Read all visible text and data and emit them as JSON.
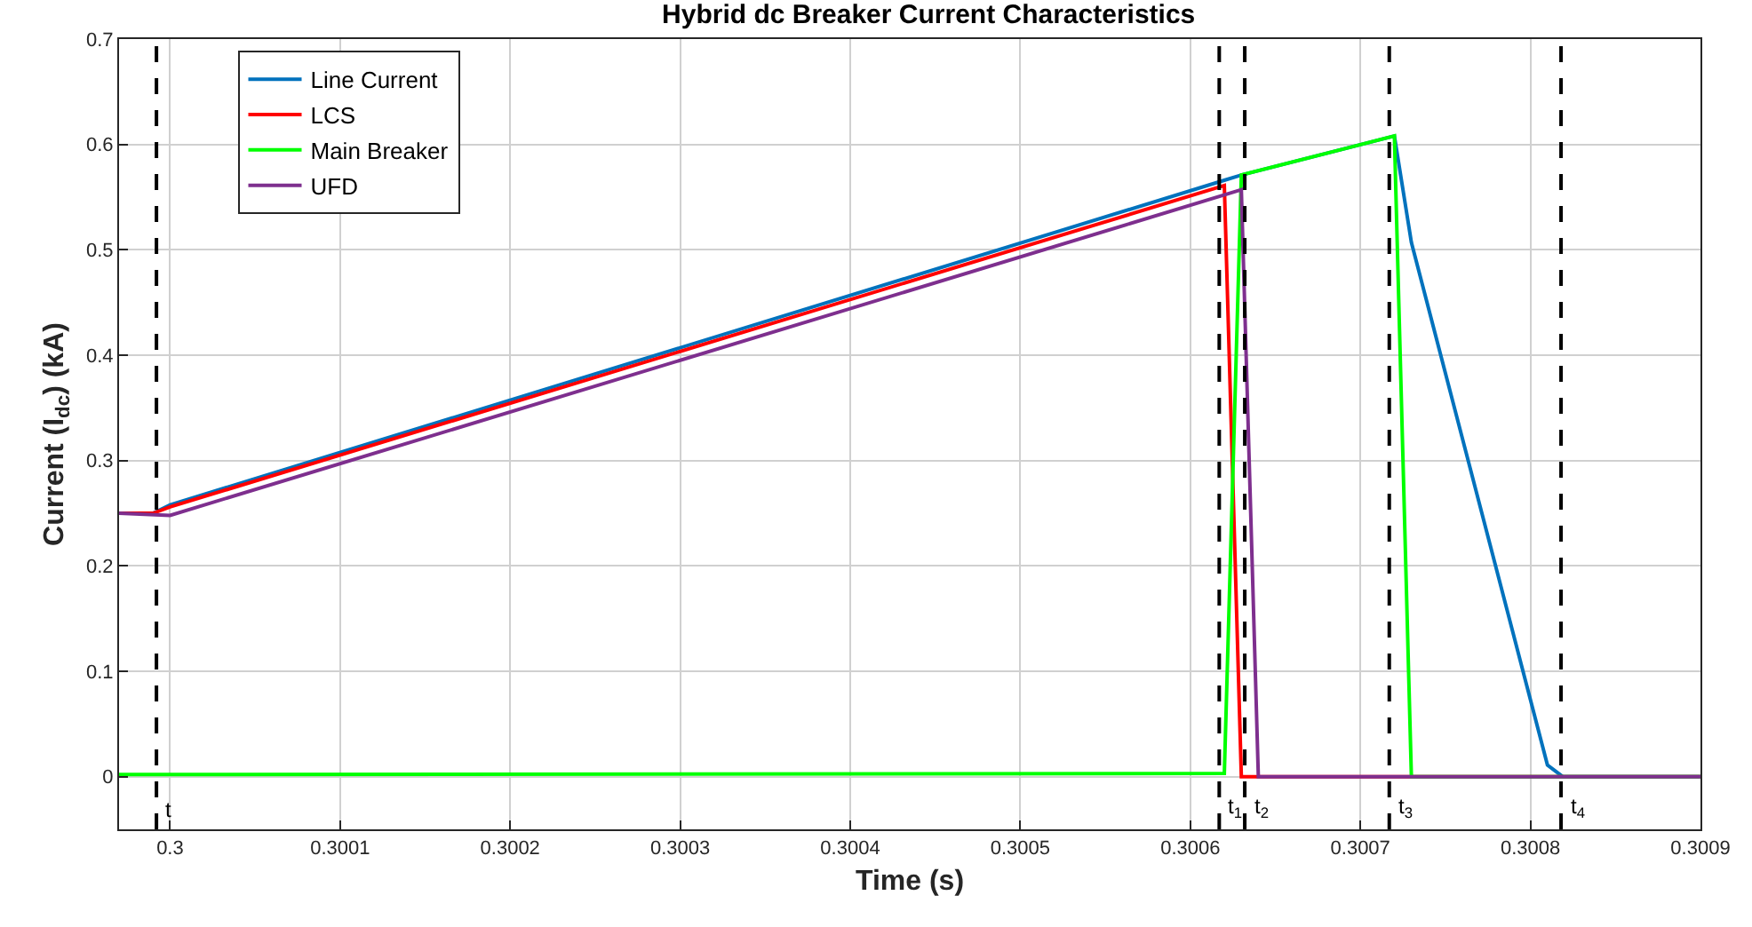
{
  "chart_data": {
    "type": "line",
    "title": "Hybrid dc Breaker Current Characteristics",
    "xlabel": "Time (s)",
    "ylabel": "Current (I$_{dc}$) (kA)",
    "series": [
      {
        "name": "Line Current",
        "color": "#0072bd",
        "x": [
          0.29997,
          0.29999,
          0.3,
          0.30062,
          0.30063,
          0.30072,
          0.30073,
          0.30081,
          0.300819,
          0.3009
        ],
        "values": [
          0.25,
          0.25,
          0.258,
          0.566,
          0.571,
          0.608,
          0.507,
          0.011,
          0,
          0
        ]
      },
      {
        "name": "LCS",
        "color": "#ff0000",
        "x": [
          0.29997,
          0.29999,
          0.3,
          0.30062,
          0.30063,
          0.3009
        ],
        "values": [
          0.25,
          0.25,
          0.256,
          0.561,
          0,
          0
        ]
      },
      {
        "name": "Main Breaker",
        "color": "#00ff00",
        "x": [
          0.29997,
          0.30062,
          0.30063,
          0.30072,
          0.30073,
          0.3009
        ],
        "values": [
          0.002,
          0.003,
          0.571,
          0.608,
          0,
          0
        ]
      },
      {
        "name": "UFD",
        "color": "#7e2f8e",
        "x": [
          0.29997,
          0.3,
          0.30063,
          0.30064,
          0.3009
        ],
        "values": [
          0.25,
          0.248,
          0.557,
          0,
          0
        ]
      }
    ],
    "xlim": [
      0.29997,
      0.3009
    ],
    "xticks": [
      0.3,
      0.3001,
      0.3002,
      0.3003,
      0.3004,
      0.3005,
      0.3006,
      0.3007,
      0.3008,
      0.3009
    ],
    "ylim": [
      -0.05,
      0.7
    ],
    "yticks": [
      0,
      0.1,
      0.2,
      0.3,
      0.4,
      0.5,
      0.6,
      0.7
    ],
    "ref_lines": [
      {
        "axis": "x",
        "value": 0.299992,
        "label": "t",
        "color": "#000000",
        "line_style": "dashed"
      },
      {
        "axis": "x",
        "value": 0.300617,
        "label": "t$_{1}$",
        "color": "#000000",
        "line_style": "dashed"
      },
      {
        "axis": "x",
        "value": 0.300632,
        "label": "t$_{2}$",
        "color": "#000000",
        "line_style": "dashed"
      },
      {
        "axis": "x",
        "value": 0.300717,
        "label": "t$_{3}$",
        "color": "#000000",
        "line_style": "dashed"
      },
      {
        "axis": "x",
        "value": 0.300818,
        "label": "t$_{4}$",
        "color": "#000000",
        "line_style": "dashed"
      }
    ],
    "grid": true,
    "legend": "top left",
    "marker": "none",
    "line_style": "solid"
  }
}
